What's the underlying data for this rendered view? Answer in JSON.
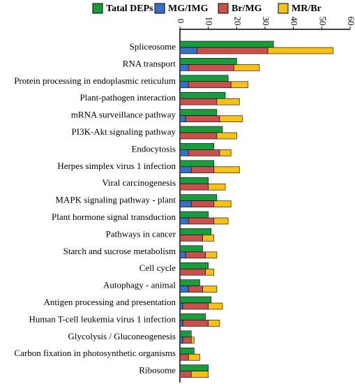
{
  "chart_data": {
    "type": "bar",
    "categories": [
      "Spliceosome",
      "RNA transport",
      "Protein processing in endoplasmic reticulum",
      "Plant-pathogen interaction",
      "mRNA surveillance pathway",
      "PI3K-Akt signaling pathway",
      "Endocytosis",
      "Herpes simplex virus 1 infection",
      "Viral carcinogenesis",
      "MAPK signaling pathway - plant",
      "Plant hormone signal transduction",
      "Pathways in cancer",
      "Starch and sucrose metabolism",
      "Cell cycle",
      "Autophagy - animal",
      "Antigen processing and presentation",
      "Human T-cell leukemia virus 1 infection",
      "Glycolysis / Gluconeogenesis",
      "Carbon fixation in photosynthetic organisms",
      "Ribosome"
    ],
    "series": [
      {
        "name": "Tatal DEPs",
        "color": "#1a9c3e",
        "values": [
          33,
          20,
          17,
          16,
          13,
          15,
          12,
          12,
          10,
          13,
          10,
          11,
          8,
          10,
          7,
          11,
          9,
          4,
          5,
          10
        ]
      },
      {
        "name": "MG/IMG",
        "color": "#3a6fc4",
        "values": [
          6,
          3,
          3,
          0,
          2,
          0,
          3,
          4,
          0,
          4,
          3,
          0,
          2,
          0,
          3,
          1,
          1,
          1,
          0,
          0
        ]
      },
      {
        "name": "Br/MG",
        "color": "#c9504c",
        "values": [
          25,
          16,
          15,
          13,
          12,
          13,
          11,
          8,
          10,
          8,
          9,
          8,
          7,
          9,
          5,
          9,
          9,
          3,
          3,
          4
        ]
      },
      {
        "name": "MR/Br",
        "color": "#f5c018",
        "values": [
          23,
          9,
          6,
          8,
          8,
          7,
          4,
          9,
          6,
          6,
          5,
          4,
          4,
          3,
          5,
          5,
          4,
          1,
          4,
          6
        ]
      }
    ],
    "xlim": [
      0,
      60
    ],
    "xticks": [
      0,
      10,
      20,
      30,
      40,
      50,
      60
    ]
  }
}
